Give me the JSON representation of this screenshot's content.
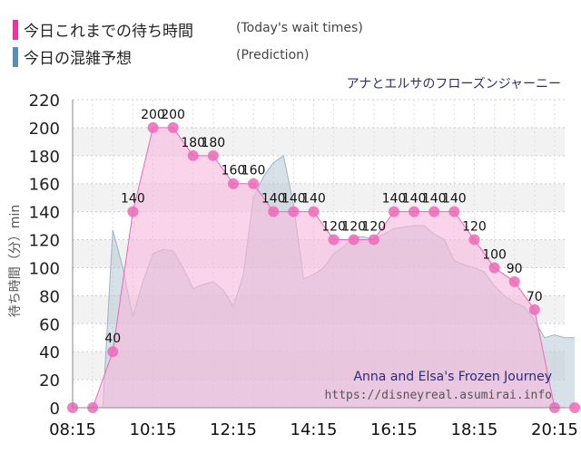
{
  "legend": {
    "actual_label": "今日これまでの待ち時間",
    "actual_sub": "(Today's wait times)",
    "predicted_label": "今日の混雑予想",
    "predicted_sub": "(Prediction)"
  },
  "colors": {
    "actual": "#e8389a",
    "actual_fill": "#f7b8dc",
    "actual_marker": "#ec6ab9",
    "predicted": "#5b8db8",
    "predicted_fill": "#b8c8d6",
    "band": "#f2f2f2",
    "title": "#2b2b7a"
  },
  "chart_data": {
    "type": "area",
    "title": "アナとエルサのフローズンジャーニー",
    "ylabel": "待ち時間（分）min",
    "xlabel": "",
    "ylim": [
      0,
      220
    ],
    "yticks": [
      0,
      20,
      40,
      60,
      80,
      100,
      120,
      140,
      160,
      180,
      200,
      220
    ],
    "xlim": [
      "08:15",
      "20:30"
    ],
    "xticks": [
      "08:15",
      "10:15",
      "12:15",
      "14:15",
      "16:15",
      "18:15",
      "20:15"
    ],
    "grid": true,
    "series": [
      {
        "name": "今日これまでの待ち時間",
        "x": [
          "08:15",
          "08:45",
          "09:15",
          "09:45",
          "10:15",
          "10:45",
          "11:15",
          "11:45",
          "12:15",
          "12:45",
          "13:15",
          "13:45",
          "14:15",
          "14:45",
          "15:15",
          "15:45",
          "16:15",
          "16:45",
          "17:15",
          "17:45",
          "18:15",
          "18:45",
          "19:15",
          "19:45",
          "20:15",
          "20:45"
        ],
        "values": [
          0,
          0,
          40,
          140,
          200,
          200,
          180,
          180,
          160,
          160,
          140,
          140,
          140,
          120,
          120,
          120,
          140,
          140,
          140,
          140,
          120,
          100,
          90,
          70,
          0,
          0
        ]
      },
      {
        "name": "今日の混雑予想",
        "x": [
          "08:15",
          "08:45",
          "09:00",
          "09:15",
          "09:30",
          "09:45",
          "10:00",
          "10:15",
          "10:30",
          "10:45",
          "11:00",
          "11:15",
          "11:30",
          "11:45",
          "12:00",
          "12:15",
          "12:30",
          "12:45",
          "13:00",
          "13:15",
          "13:30",
          "13:45",
          "14:00",
          "14:15",
          "14:30",
          "14:45",
          "15:00",
          "15:15",
          "15:30",
          "15:45",
          "16:00",
          "16:15",
          "16:30",
          "16:45",
          "17:00",
          "17:15",
          "17:30",
          "17:45",
          "18:00",
          "18:15",
          "18:30",
          "18:45",
          "19:00",
          "19:15",
          "19:30",
          "19:45",
          "20:00",
          "20:15",
          "20:30",
          "20:45"
        ],
        "values": [
          0,
          0,
          0,
          127,
          100,
          65,
          90,
          110,
          113,
          112,
          100,
          85,
          88,
          90,
          84,
          72,
          95,
          150,
          165,
          175,
          180,
          145,
          92,
          95,
          100,
          110,
          115,
          122,
          122,
          120,
          124,
          128,
          129,
          130,
          130,
          124,
          120,
          105,
          102,
          100,
          97,
          87,
          80,
          75,
          72,
          62,
          50,
          52,
          50,
          50
        ]
      }
    ]
  },
  "watermark": {
    "line1": "Anna and Elsa's Frozen Journey",
    "line2": "https://disneyreal.asumirai.info"
  }
}
